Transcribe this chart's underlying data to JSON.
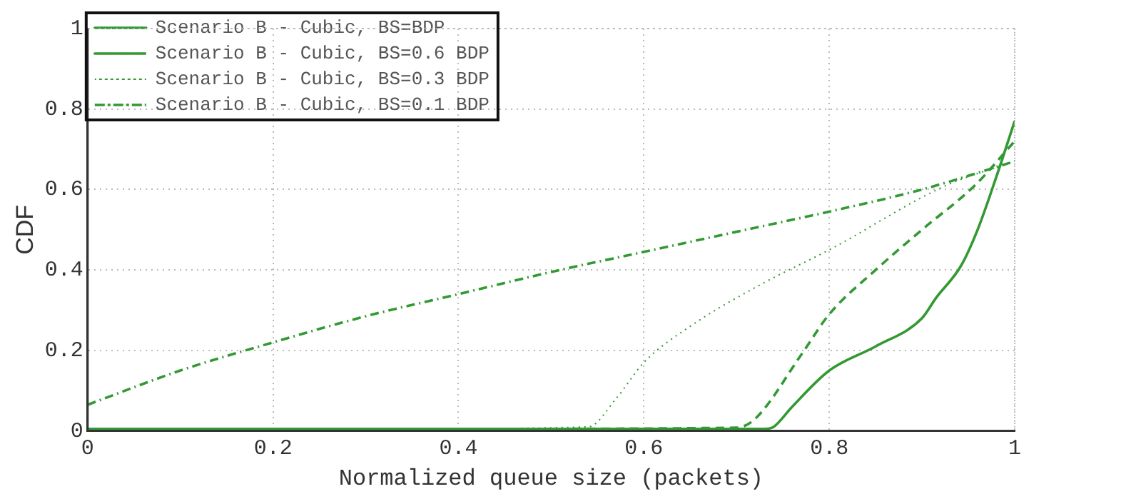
{
  "chart_data": {
    "type": "line",
    "xlabel": "Normalized queue size (packets)",
    "ylabel": "CDF",
    "xlim": [
      0,
      1
    ],
    "xticks": [
      0,
      0.2,
      0.4,
      0.6,
      0.8,
      1
    ],
    "ylim": [
      0,
      1
    ],
    "yticks": [
      0,
      0.2,
      0.4,
      0.6,
      0.8,
      1
    ],
    "grid": true,
    "legend": "top left",
    "marker": "none",
    "series": [
      {
        "name": "Scenario B - Cubic, BS=BDP",
        "color": "#339933",
        "line_style": "solid",
        "x": [
          0,
          0.4,
          0.73,
          0.74,
          0.76,
          0.8,
          0.85,
          0.9,
          0.915,
          0.942,
          0.96,
          0.98,
          1
        ],
        "values": [
          0.005,
          0.005,
          0.005,
          0.01,
          0.06,
          0.15,
          0.21,
          0.28,
          0.33,
          0.41,
          0.5,
          0.63,
          0.77
        ]
      },
      {
        "name": "Scenario B - Cubic, BS=0.6 BDP",
        "color": "#339933",
        "line_style": "dashed",
        "x": [
          0,
          0.4,
          0.7,
          0.72,
          0.77,
          0.8,
          0.85,
          0.9,
          0.957,
          1
        ],
        "values": [
          0.005,
          0.005,
          0.008,
          0.03,
          0.19,
          0.29,
          0.4,
          0.5,
          0.61,
          0.72
        ]
      },
      {
        "name": "Scenario B - Cubic, BS=0.3 BDP",
        "color": "#339933",
        "line_style": "dotted",
        "x": [
          0,
          0.3,
          0.54,
          0.57,
          0.6,
          0.65,
          0.727,
          0.8,
          0.926,
          1
        ],
        "values": [
          0.005,
          0.005,
          0.01,
          0.08,
          0.17,
          0.26,
          0.365,
          0.45,
          0.61,
          0.67
        ]
      },
      {
        "name": "Scenario B - Cubic, BS=0.1 BDP",
        "color": "#339933",
        "line_style": "dashdot",
        "x": [
          0,
          0.1,
          0.2,
          0.3,
          0.4,
          0.5,
          0.6,
          0.7,
          0.8,
          0.9,
          1
        ],
        "values": [
          0.065,
          0.15,
          0.22,
          0.285,
          0.34,
          0.395,
          0.445,
          0.495,
          0.545,
          0.6,
          0.67
        ]
      }
    ]
  }
}
